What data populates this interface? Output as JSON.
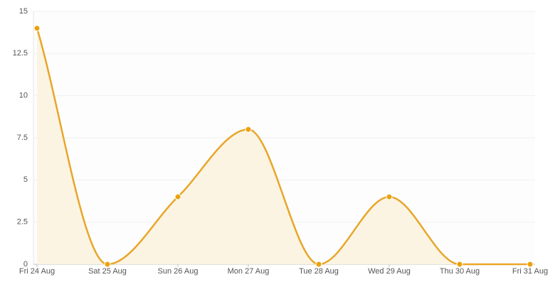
{
  "chart_data": {
    "type": "areaspline",
    "categories": [
      "Fri 24 Aug",
      "Sat 25 Aug",
      "Sun 26 Aug",
      "Mon 27 Aug",
      "Tue 28 Aug",
      "Wed 29 Aug",
      "Thu 30 Aug",
      "Fri 31 Aug"
    ],
    "values": [
      14,
      0,
      4,
      8,
      0,
      4,
      0,
      0
    ],
    "color": "#e8a62a",
    "fill": "#fcf4e3",
    "marker_color": "#eba20e",
    "ylim": [
      0,
      15
    ],
    "yticks": [
      0,
      2.5,
      5,
      7.5,
      10,
      12.5,
      15
    ],
    "grid": true
  }
}
